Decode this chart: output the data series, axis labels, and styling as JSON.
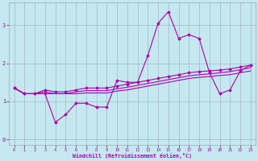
{
  "xlabel": "Windchill (Refroidissement éolien,°C)",
  "xlim": [
    -0.5,
    23.5
  ],
  "ylim": [
    -0.15,
    3.6
  ],
  "yticks": [
    0,
    1,
    2,
    3
  ],
  "xticks": [
    0,
    1,
    2,
    3,
    4,
    5,
    6,
    7,
    8,
    9,
    10,
    11,
    12,
    13,
    14,
    15,
    16,
    17,
    18,
    19,
    20,
    21,
    22,
    23
  ],
  "bg_color": "#c5e8f0",
  "line_color": "#aa00aa",
  "grid_color": "#99aabb",
  "line1_x": [
    0,
    1,
    2,
    3,
    4,
    5,
    6,
    7,
    8,
    9,
    10,
    11,
    12,
    13,
    14,
    15,
    16,
    17,
    18,
    19,
    20,
    21,
    22,
    23
  ],
  "line1_y": [
    1.35,
    1.2,
    1.2,
    1.2,
    0.45,
    0.65,
    0.95,
    0.95,
    0.85,
    0.85,
    1.55,
    1.5,
    1.5,
    2.2,
    3.05,
    3.35,
    2.65,
    2.75,
    2.65,
    1.75,
    1.2,
    1.3,
    1.8,
    1.95
  ],
  "line2_x": [
    0,
    1,
    2,
    3,
    4,
    5,
    6,
    7,
    8,
    9,
    10,
    11,
    12,
    13,
    14,
    15,
    16,
    17,
    18,
    19,
    20,
    21,
    22,
    23
  ],
  "line2_y": [
    1.35,
    1.2,
    1.2,
    1.3,
    1.25,
    1.25,
    1.3,
    1.35,
    1.35,
    1.35,
    1.4,
    1.45,
    1.5,
    1.55,
    1.6,
    1.65,
    1.7,
    1.75,
    1.78,
    1.8,
    1.82,
    1.85,
    1.9,
    1.95
  ],
  "line3_x": [
    0,
    1,
    2,
    3,
    4,
    5,
    6,
    7,
    8,
    9,
    10,
    11,
    12,
    13,
    14,
    15,
    16,
    17,
    18,
    19,
    20,
    21,
    22,
    23
  ],
  "line3_y": [
    1.35,
    1.2,
    1.2,
    1.25,
    1.2,
    1.2,
    1.25,
    1.28,
    1.28,
    1.28,
    1.33,
    1.37,
    1.42,
    1.47,
    1.52,
    1.57,
    1.62,
    1.67,
    1.7,
    1.72,
    1.75,
    1.78,
    1.83,
    1.88
  ],
  "line4_x": [
    0,
    1,
    2,
    3,
    4,
    5,
    6,
    7,
    8,
    9,
    10,
    11,
    12,
    13,
    14,
    15,
    16,
    17,
    18,
    19,
    20,
    21,
    22,
    23
  ],
  "line4_y": [
    1.35,
    1.2,
    1.2,
    1.2,
    1.2,
    1.2,
    1.2,
    1.22,
    1.22,
    1.22,
    1.27,
    1.3,
    1.35,
    1.4,
    1.45,
    1.5,
    1.55,
    1.6,
    1.63,
    1.65,
    1.68,
    1.7,
    1.75,
    1.8
  ],
  "lw": 0.8,
  "ms": 2.0
}
